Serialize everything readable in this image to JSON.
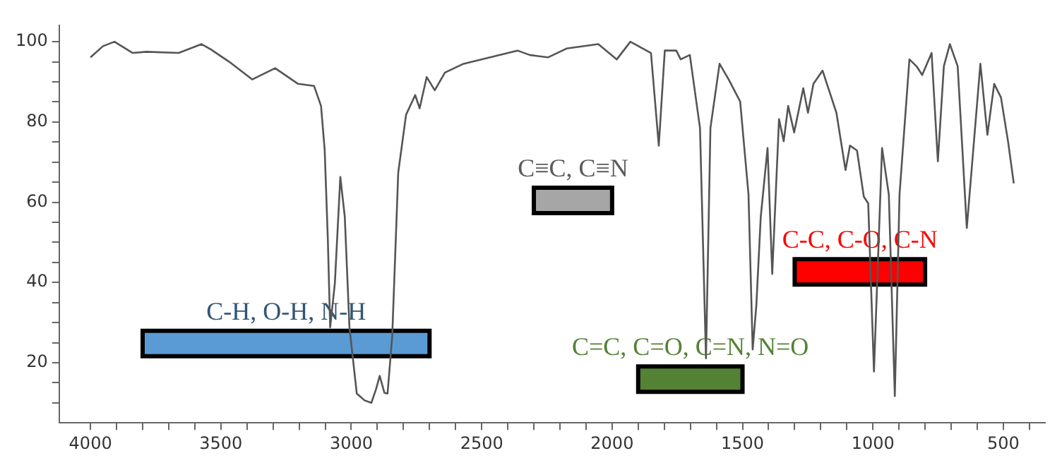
{
  "chart_data": {
    "type": "line",
    "xlim": [
      4120,
      340
    ],
    "ylim": [
      5,
      104
    ],
    "xticks": [
      {
        "value": 4000,
        "label": "4000"
      },
      {
        "value": 3900,
        "label": null
      },
      {
        "value": 3800,
        "label": null
      },
      {
        "value": 3700,
        "label": null
      },
      {
        "value": 3600,
        "label": null
      },
      {
        "value": 3500,
        "label": "3500"
      },
      {
        "value": 3400,
        "label": null
      },
      {
        "value": 3300,
        "label": null
      },
      {
        "value": 3200,
        "label": null
      },
      {
        "value": 3100,
        "label": null
      },
      {
        "value": 3000,
        "label": "3000"
      },
      {
        "value": 2900,
        "label": null
      },
      {
        "value": 2800,
        "label": null
      },
      {
        "value": 2700,
        "label": null
      },
      {
        "value": 2600,
        "label": null
      },
      {
        "value": 2500,
        "label": "2500"
      },
      {
        "value": 2400,
        "label": null
      },
      {
        "value": 2300,
        "label": null
      },
      {
        "value": 2200,
        "label": null
      },
      {
        "value": 2100,
        "label": null
      },
      {
        "value": 2000,
        "label": "2000"
      },
      {
        "value": 1900,
        "label": null
      },
      {
        "value": 1800,
        "label": null
      },
      {
        "value": 1700,
        "label": null
      },
      {
        "value": 1600,
        "label": null
      },
      {
        "value": 1500,
        "label": "1500"
      },
      {
        "value": 1400,
        "label": null
      },
      {
        "value": 1300,
        "label": null
      },
      {
        "value": 1200,
        "label": null
      },
      {
        "value": 1100,
        "label": null
      },
      {
        "value": 1000,
        "label": "1000"
      },
      {
        "value": 900,
        "label": null
      },
      {
        "value": 800,
        "label": null
      },
      {
        "value": 700,
        "label": null
      },
      {
        "value": 600,
        "label": null
      },
      {
        "value": 500,
        "label": "500"
      },
      {
        "value": 400,
        "label": null
      }
    ],
    "yticks": [
      {
        "value": 10,
        "label": null
      },
      {
        "value": 15,
        "label": null
      },
      20,
      {
        "value": 25,
        "label": null
      },
      {
        "value": 30,
        "label": null
      },
      {
        "value": 35,
        "label": null
      },
      40,
      {
        "value": 45,
        "label": null
      },
      {
        "value": 50,
        "label": null
      },
      {
        "value": 55,
        "label": null
      },
      60,
      {
        "value": 65,
        "label": null
      },
      {
        "value": 70,
        "label": null
      },
      {
        "value": 75,
        "label": null
      },
      80,
      {
        "value": 85,
        "label": null
      },
      {
        "value": 90,
        "label": null
      },
      {
        "value": 95,
        "label": null
      },
      100
    ],
    "grid": false,
    "legend": false,
    "marker": "none",
    "series": [
      {
        "color": "#555555",
        "x": [
          4000,
          3952,
          3908,
          3838,
          3785,
          3662,
          3574,
          3539,
          3468,
          3380,
          3292,
          3204,
          3143,
          3116,
          3102,
          3090,
          3081,
          3063,
          3042,
          3025,
          3007,
          2979,
          2949,
          2923,
          2905,
          2891,
          2873,
          2861,
          2843,
          2820,
          2790,
          2755,
          2738,
          2711,
          2680,
          2641,
          2570,
          2468,
          2363,
          2316,
          2246,
          2175,
          2053,
          1982,
          1930,
          1851,
          1821,
          1798,
          1754,
          1737,
          1702,
          1663,
          1640,
          1623,
          1588,
          1553,
          1509,
          1477,
          1461,
          1447,
          1430,
          1404,
          1386,
          1360,
          1342,
          1325,
          1302,
          1267,
          1249,
          1228,
          1193,
          1140,
          1105,
          1088,
          1061,
          1035,
          1018,
          996,
          965,
          939,
          916,
          898,
          860,
          833,
          811,
          775,
          751,
          728,
          705,
          675,
          640,
          588,
          561,
          535,
          509,
          482,
          460
        ],
        "values": [
          96.1,
          98.9,
          100,
          97.2,
          97.5,
          97.2,
          99.4,
          98.1,
          95,
          90.6,
          93.4,
          89.5,
          89,
          84,
          73,
          50.9,
          28.8,
          39.8,
          66.3,
          56.4,
          28.8,
          12.3,
          10.6,
          10,
          13.4,
          16.7,
          12.5,
          12.3,
          26.6,
          67.4,
          81.8,
          86.7,
          83.4,
          91.2,
          87.9,
          92.3,
          94.5,
          96.1,
          97.8,
          96.7,
          96.1,
          98.3,
          99.4,
          95.6,
          100,
          97.2,
          74.1,
          97.8,
          97.8,
          95.6,
          96.7,
          78.5,
          21.1,
          78.5,
          94.5,
          90.6,
          85.1,
          61.9,
          23.3,
          34.3,
          56.4,
          73.5,
          42.1,
          80.7,
          75.2,
          84,
          77.4,
          88.4,
          82.3,
          89.5,
          92.8,
          82.3,
          68,
          74.1,
          72.9,
          61.4,
          59.7,
          17.8,
          73.5,
          61.9,
          11.7,
          61.9,
          95.6,
          93.9,
          91.7,
          97.2,
          70.2,
          93.9,
          99.4,
          93.9,
          53.6,
          94.5,
          76.8,
          89.5,
          86.1,
          75.2,
          64.7
        ]
      }
    ],
    "bands": [
      {
        "axis": "x",
        "from": 3800,
        "to": 2700,
        "label": "C-H, O-H, N-H",
        "color": "#5b9bd5"
      },
      {
        "axis": "x",
        "from": 2300,
        "to": 2000,
        "label": "C≡C, C≡N",
        "color": "#a6a6a6"
      },
      {
        "axis": "x",
        "from": 1900,
        "to": 1500,
        "label": "C=C, C=O, C=N, N=O",
        "color": "#548235"
      },
      {
        "axis": "x",
        "from": 1300,
        "to": 800,
        "label": "C-C, C-O, C-N",
        "color": "#ff0000"
      }
    ]
  }
}
